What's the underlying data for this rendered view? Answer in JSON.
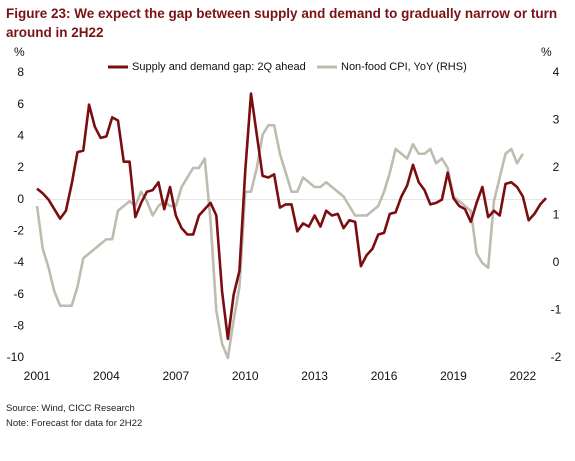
{
  "chart_data": {
    "type": "line",
    "title": "Figure 23: We expect the gap between supply and demand to gradually narrow or turn around in 2H22",
    "y_label": "%",
    "y2_label": "%",
    "source": "Source: Wind, CICC Research",
    "note": "Note: Forecast for data for 2H22",
    "xlim": [
      2001,
      2023
    ],
    "xticks": [
      2001,
      2004,
      2007,
      2010,
      2013,
      2016,
      2019,
      2022
    ],
    "ylim": [
      -10,
      8
    ],
    "yticks": [
      -10,
      -8,
      -6,
      -4,
      -2,
      0,
      2,
      4,
      6,
      8
    ],
    "y2lim": [
      -2,
      4
    ],
    "y2ticks": [
      -2,
      -1,
      0,
      1,
      2,
      3,
      4
    ],
    "legend": "top",
    "series": [
      {
        "name": "Supply and demand gap: 2Q ahead",
        "color": "#7b0d10",
        "axis": "y",
        "x": [
          2001,
          2001.25,
          2001.5,
          2001.75,
          2002,
          2002.25,
          2002.5,
          2002.75,
          2003,
          2003.25,
          2003.5,
          2003.75,
          2004,
          2004.25,
          2004.5,
          2004.75,
          2005,
          2005.25,
          2005.5,
          2005.75,
          2006,
          2006.25,
          2006.5,
          2006.75,
          2007,
          2007.25,
          2007.5,
          2007.75,
          2008,
          2008.25,
          2008.5,
          2008.75,
          2009,
          2009.25,
          2009.5,
          2009.75,
          2010,
          2010.25,
          2010.5,
          2010.75,
          2011,
          2011.25,
          2011.5,
          2011.75,
          2012,
          2012.25,
          2012.5,
          2012.75,
          2013,
          2013.25,
          2013.5,
          2013.75,
          2014,
          2014.25,
          2014.5,
          2014.75,
          2015,
          2015.25,
          2015.5,
          2015.75,
          2016,
          2016.25,
          2016.5,
          2016.75,
          2017,
          2017.25,
          2017.5,
          2017.75,
          2018,
          2018.25,
          2018.5,
          2018.75,
          2019,
          2019.25,
          2019.5,
          2019.75,
          2020,
          2020.25,
          2020.5,
          2020.75,
          2021,
          2021.25,
          2021.5,
          2021.75,
          2022,
          2022.25,
          2022.5,
          2022.75,
          2023
        ],
        "values": [
          0.7,
          0.4,
          0,
          -0.6,
          -1.2,
          -0.7,
          1,
          3,
          3.1,
          6,
          4.6,
          3.9,
          4,
          5.2,
          5,
          2.4,
          2.4,
          -1.1,
          -0.2,
          0.5,
          0.6,
          1.1,
          -0.6,
          0.8,
          -1,
          -1.8,
          -2.2,
          -2.2,
          -1,
          -0.6,
          -0.2,
          -1,
          -5.8,
          -8.8,
          -6,
          -4.5,
          1.8,
          6.7,
          4.1,
          1.5,
          1.4,
          1.6,
          -0.5,
          -0.3,
          -0.3,
          -2,
          -1.5,
          -1.7,
          -1,
          -1.7,
          -0.7,
          -1,
          -0.9,
          -1.8,
          -1.3,
          -1.4,
          -4.2,
          -3.5,
          -3.1,
          -2.2,
          -2.1,
          -0.9,
          -0.8,
          0.2,
          0.9,
          2.2,
          1.1,
          0.6,
          -0.3,
          -0.2,
          0,
          1.7,
          0.1,
          -0.4,
          -0.6,
          -1.4,
          -0.2,
          0.8,
          -1.1,
          -0.7,
          -1,
          1,
          1.1,
          0.8,
          0.2,
          -1.3,
          -0.9,
          -0.3,
          0.1
        ]
      },
      {
        "name": "Non-food CPI, YoY (RHS)",
        "color": "#bdbcae",
        "axis": "y2",
        "x": [
          2001,
          2001.25,
          2001.5,
          2001.75,
          2002,
          2002.25,
          2002.5,
          2002.75,
          2003,
          2003.25,
          2003.5,
          2003.75,
          2004,
          2004.25,
          2004.5,
          2004.75,
          2005,
          2005.25,
          2005.5,
          2005.75,
          2006,
          2006.25,
          2006.5,
          2006.75,
          2007,
          2007.25,
          2007.5,
          2007.75,
          2008,
          2008.25,
          2008.5,
          2008.75,
          2009,
          2009.25,
          2009.5,
          2009.75,
          2010,
          2010.25,
          2010.5,
          2010.75,
          2011,
          2011.25,
          2011.5,
          2011.75,
          2012,
          2012.25,
          2012.5,
          2012.75,
          2013,
          2013.25,
          2013.5,
          2013.75,
          2014,
          2014.25,
          2014.5,
          2014.75,
          2015,
          2015.25,
          2015.5,
          2015.75,
          2016,
          2016.25,
          2016.5,
          2016.75,
          2017,
          2017.25,
          2017.5,
          2017.75,
          2018,
          2018.25,
          2018.5,
          2018.75,
          2019,
          2019.25,
          2019.5,
          2019.75,
          2020,
          2020.25,
          2020.5,
          2020.75,
          2021,
          2021.25,
          2021.5,
          2021.75,
          2022
        ],
        "values": [
          1.2,
          0.3,
          -0.1,
          -0.6,
          -0.9,
          -0.9,
          -0.9,
          -0.5,
          0.1,
          0.2,
          0.3,
          0.4,
          0.5,
          0.5,
          1.1,
          1.2,
          1.3,
          1.2,
          1.5,
          1.3,
          1.0,
          1.2,
          1.3,
          1.2,
          1.2,
          1.6,
          1.8,
          2.0,
          2.0,
          2.2,
          0.9,
          -1.0,
          -1.7,
          -2.0,
          -1.2,
          -0.5,
          1.5,
          1.5,
          2.0,
          2.7,
          2.9,
          2.9,
          2.3,
          1.9,
          1.5,
          1.5,
          1.8,
          1.7,
          1.6,
          1.6,
          1.7,
          1.6,
          1.5,
          1.4,
          1.2,
          1.0,
          1.0,
          1.0,
          1.1,
          1.2,
          1.5,
          1.9,
          2.4,
          2.3,
          2.2,
          2.5,
          2.3,
          2.3,
          2.4,
          2.1,
          2.2,
          2.0,
          1.4,
          1.3,
          1.2,
          1.1,
          0.2,
          0.0,
          -0.1,
          1.3,
          1.8,
          2.3,
          2.4,
          2.1,
          2.3
        ]
      }
    ]
  }
}
